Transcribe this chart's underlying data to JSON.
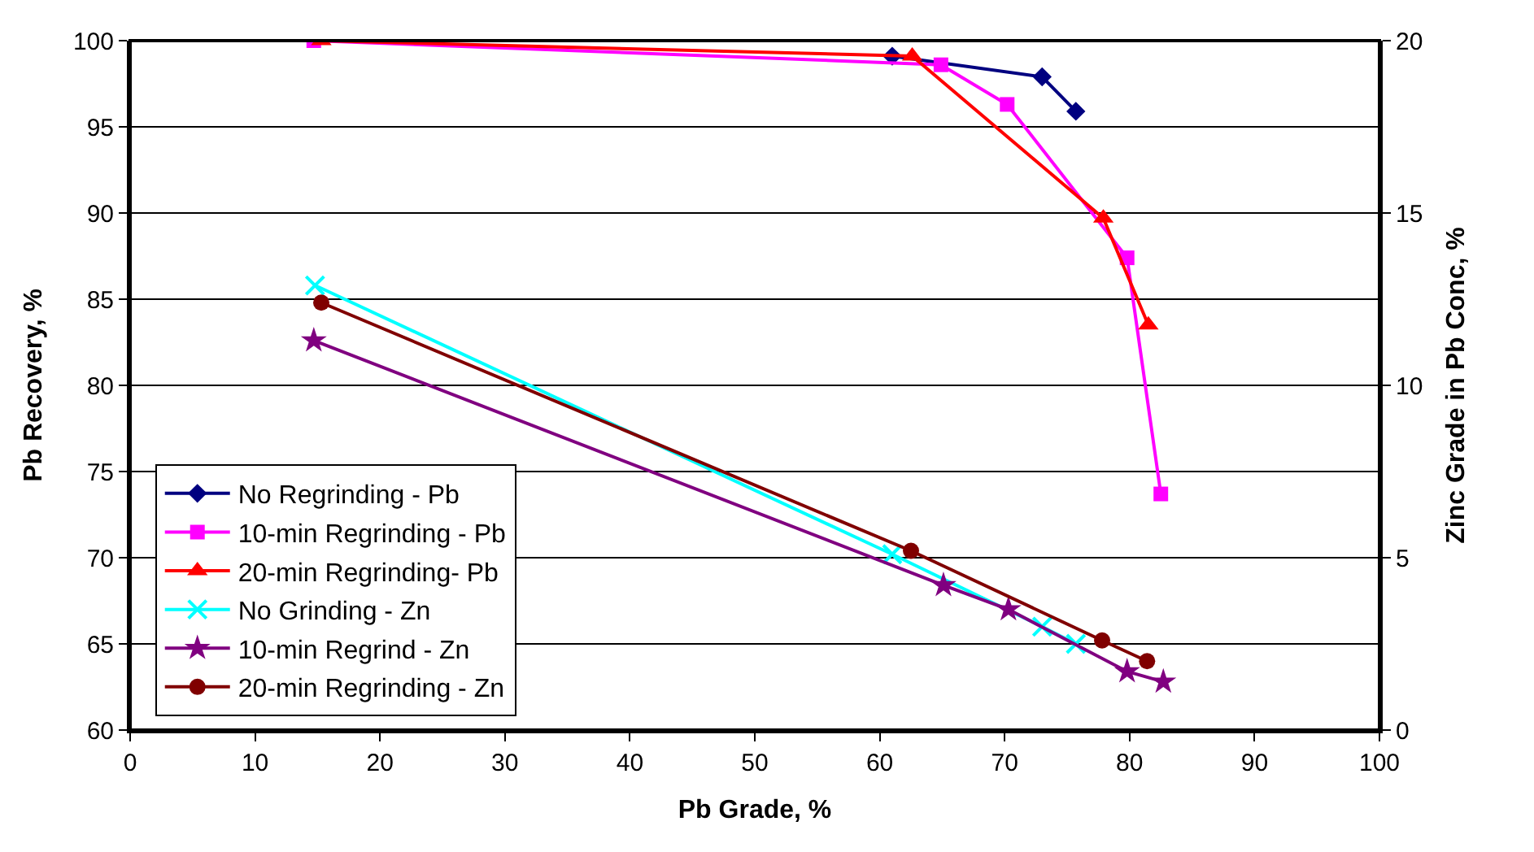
{
  "chart_data": {
    "type": "line",
    "xlabel": "Pb Grade, %",
    "ylabel": "Pb Recovery, %",
    "y2label": "Zinc Grade in Pb Conc, %",
    "xlim": [
      0,
      100
    ],
    "xticks": [
      0,
      10,
      20,
      30,
      40,
      50,
      60,
      70,
      80,
      90,
      100
    ],
    "ylim": [
      60,
      100
    ],
    "yticks": [
      60,
      65,
      70,
      75,
      80,
      85,
      90,
      95,
      100
    ],
    "y2lim": [
      0,
      20
    ],
    "y2ticks": [
      0,
      5,
      10,
      15,
      20
    ],
    "grid": "y",
    "legend": "bottom left",
    "series": [
      {
        "name": "No Regrinding - Pb",
        "color": "#000080",
        "marker": "diamond",
        "x": [
          61.0,
          73.0,
          75.7
        ],
        "values": [
          99.1,
          97.9,
          95.9
        ]
      },
      {
        "name": "10-min Regrinding - Pb",
        "color": "#ff00ff",
        "marker": "square",
        "x": [
          14.7,
          64.9,
          70.2,
          79.8,
          82.5
        ],
        "values": [
          100,
          98.6,
          96.3,
          87.4,
          73.7
        ]
      },
      {
        "name": "20-min Regrinding- Pb",
        "color": "#ff0000",
        "marker": "triangle",
        "x": [
          15.3,
          62.6,
          77.9,
          81.5
        ],
        "values": [
          100,
          99.1,
          89.7,
          83.5
        ]
      },
      {
        "name": "No Grinding - Zn",
        "color": "#00ffff",
        "marker": "cross",
        "axis": "y2",
        "x": [
          14.8,
          61.0,
          73.0,
          75.7
        ],
        "values": [
          12.9,
          5.1,
          3.0,
          2.5
        ]
      },
      {
        "name": "10-min Regrind - Zn",
        "color": "#800080",
        "marker": "star",
        "axis": "y2",
        "x": [
          14.7,
          65.1,
          70.3,
          79.8,
          82.7
        ],
        "values": [
          11.3,
          4.2,
          3.5,
          1.7,
          1.4
        ]
      },
      {
        "name": "20-min Regrinding - Zn",
        "color": "#800000",
        "marker": "circle",
        "axis": "y2",
        "x": [
          15.3,
          62.5,
          77.8,
          81.4
        ],
        "values": [
          12.4,
          5.2,
          2.6,
          2.0
        ]
      }
    ]
  }
}
